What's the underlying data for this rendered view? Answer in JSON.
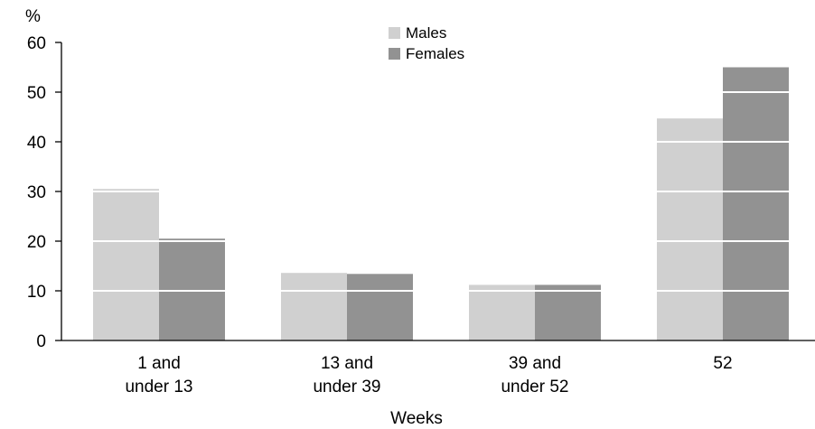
{
  "chart_data": {
    "type": "bar",
    "categories": [
      [
        "1 and",
        "under 13"
      ],
      [
        "13 and",
        "under 39"
      ],
      [
        "39 and",
        "under 52"
      ],
      [
        "52"
      ]
    ],
    "series": [
      {
        "name": "Males",
        "color": "#d0d0d0",
        "values": [
          30.5,
          13.6,
          11.2,
          44.7
        ]
      },
      {
        "name": "Females",
        "color": "#929292",
        "values": [
          20.5,
          13.4,
          11.2,
          55.0
        ]
      }
    ],
    "xlabel": "Weeks",
    "ylabel": "%",
    "ylim": [
      0,
      60
    ],
    "yticks": [
      "0",
      "10",
      "20",
      "30",
      "40",
      "50",
      "60"
    ],
    "gridlines": "white, drawn over bars",
    "legend_position": "top-center"
  }
}
